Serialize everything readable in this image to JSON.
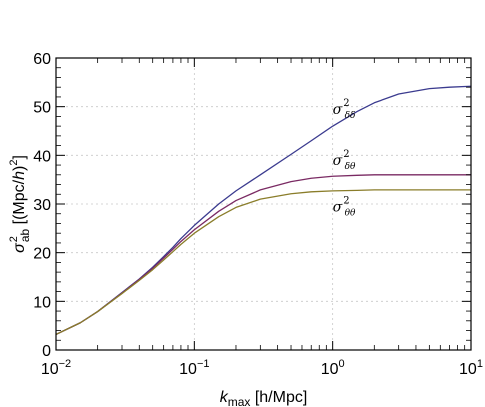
{
  "chart_data": {
    "type": "line",
    "title": "",
    "xscale": "log",
    "xlim": [
      0.01,
      10
    ],
    "ylim": [
      0,
      60
    ],
    "xlabel": {
      "main": "k",
      "sub": "max",
      "rest": " [h/Mpc]"
    },
    "ylabel": {
      "main": "σ",
      "sup": "2",
      "sub": "ab",
      "rest": " [(Mpc/",
      "italic": "h",
      "close": ")",
      "close_sup": "2",
      "end": "]"
    },
    "xticks": [
      {
        "value": 0.01,
        "base": "10",
        "exp": "−2"
      },
      {
        "value": 0.1,
        "base": "10",
        "exp": "−1"
      },
      {
        "value": 1,
        "base": "10",
        "exp": "0"
      },
      {
        "value": 10,
        "base": "10",
        "exp": "1"
      }
    ],
    "yticks": [
      {
        "value": 0,
        "label": "0"
      },
      {
        "value": 10,
        "label": "10"
      },
      {
        "value": 20,
        "label": "20"
      },
      {
        "value": 30,
        "label": "30"
      },
      {
        "value": 40,
        "label": "40"
      },
      {
        "value": 50,
        "label": "50"
      },
      {
        "value": 60,
        "label": "60"
      }
    ],
    "grid": true,
    "series": [
      {
        "label_main": "σ",
        "label_sup": "2",
        "label_sub": "δδ",
        "label_at": {
          "x": 1.0,
          "y": 48.5
        },
        "color": "#3b3b8f",
        "points": [
          [
            0.01,
            3.2
          ],
          [
            0.015,
            5.6
          ],
          [
            0.02,
            7.9
          ],
          [
            0.03,
            11.8
          ],
          [
            0.04,
            14.6
          ],
          [
            0.05,
            17.0
          ],
          [
            0.06,
            19.2
          ],
          [
            0.07,
            21.1
          ],
          [
            0.08,
            22.9
          ],
          [
            0.1,
            25.6
          ],
          [
            0.15,
            30.0
          ],
          [
            0.2,
            32.7
          ],
          [
            0.3,
            36.0
          ],
          [
            0.5,
            40.2
          ],
          [
            0.7,
            43.0
          ],
          [
            1.0,
            46.0
          ],
          [
            1.5,
            49.0
          ],
          [
            2.0,
            50.8
          ],
          [
            3.0,
            52.6
          ],
          [
            5.0,
            53.7
          ],
          [
            7.0,
            54.0
          ],
          [
            10.0,
            54.2
          ]
        ]
      },
      {
        "label_main": "σ",
        "label_sup": "2",
        "label_sub": "δθ",
        "label_at": {
          "x": 1.0,
          "y": 38.0
        },
        "color": "#7a2a63",
        "points": [
          [
            0.01,
            3.2
          ],
          [
            0.015,
            5.6
          ],
          [
            0.02,
            7.9
          ],
          [
            0.03,
            11.7
          ],
          [
            0.04,
            14.5
          ],
          [
            0.05,
            16.8
          ],
          [
            0.06,
            18.9
          ],
          [
            0.07,
            20.7
          ],
          [
            0.08,
            22.3
          ],
          [
            0.1,
            24.7
          ],
          [
            0.15,
            28.5
          ],
          [
            0.2,
            30.7
          ],
          [
            0.3,
            32.9
          ],
          [
            0.5,
            34.6
          ],
          [
            0.7,
            35.3
          ],
          [
            1.0,
            35.7
          ],
          [
            1.5,
            35.9
          ],
          [
            2.0,
            36.0
          ],
          [
            3.0,
            36.0
          ],
          [
            5.0,
            36.0
          ],
          [
            10.0,
            36.0
          ]
        ]
      },
      {
        "label_main": "σ",
        "label_sup": "2",
        "label_sub": "θθ",
        "label_at": {
          "x": 1.0,
          "y": 28.5
        },
        "color": "#8a7d2a",
        "points": [
          [
            0.01,
            3.2
          ],
          [
            0.015,
            5.6
          ],
          [
            0.02,
            7.9
          ],
          [
            0.03,
            11.6
          ],
          [
            0.04,
            14.3
          ],
          [
            0.05,
            16.5
          ],
          [
            0.06,
            18.5
          ],
          [
            0.07,
            20.2
          ],
          [
            0.08,
            21.7
          ],
          [
            0.1,
            24.0
          ],
          [
            0.15,
            27.4
          ],
          [
            0.2,
            29.3
          ],
          [
            0.3,
            31.0
          ],
          [
            0.5,
            32.1
          ],
          [
            0.7,
            32.5
          ],
          [
            1.0,
            32.7
          ],
          [
            1.5,
            32.8
          ],
          [
            2.0,
            32.9
          ],
          [
            3.0,
            32.9
          ],
          [
            5.0,
            32.9
          ],
          [
            10.0,
            32.9
          ]
        ]
      }
    ]
  }
}
